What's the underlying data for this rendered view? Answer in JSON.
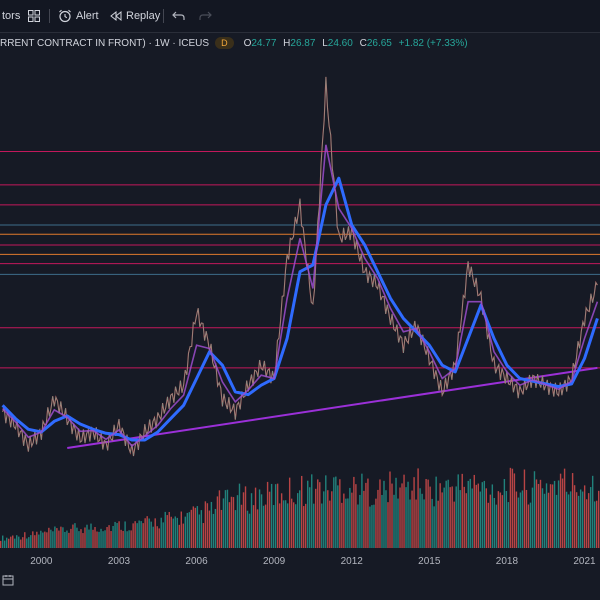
{
  "toolbar": {
    "indicators_label": "tors",
    "alert_label": "Alert",
    "replay_label": "Replay",
    "icons": [
      "layout-grid-icon",
      "alarm-clock-icon",
      "replay-icon",
      "undo-icon",
      "redo-icon"
    ]
  },
  "legend": {
    "symbol_title": "RRENT CONTRACT IN FRONT) · 1W · ICEUS",
    "badge": "D",
    "open_label": "O",
    "open": "24.77",
    "high_label": "H",
    "high": "26.87",
    "low_label": "L",
    "low": "24.60",
    "close_label": "C",
    "close": "26.65",
    "change": "+1.82 (+7.33%)"
  },
  "colors": {
    "background": "#161a25",
    "price_line": "#e05e5e",
    "moving_avg": "#2f6bff",
    "trend_line": "#9b30d8",
    "resistance_magenta": "#c2185b",
    "resistance_orange": "#e07a2d",
    "resistance_blue": "#3d6d8a",
    "volume_up": "#26a69a",
    "volume_down": "#ef5350",
    "up_text": "#26a69a"
  },
  "chart_data": {
    "type": "line",
    "x_axis_ticks": [
      "2000",
      "2003",
      "2006",
      "2009",
      "2012",
      "2015",
      "2018",
      "2021"
    ],
    "x": [
      1998.5,
      1999.0,
      1999.5,
      2000.0,
      2000.5,
      2001.0,
      2001.5,
      2002.0,
      2002.5,
      2003.0,
      2003.5,
      2004.0,
      2004.5,
      2005.0,
      2005.5,
      2006.0,
      2006.5,
      2007.0,
      2007.5,
      2008.0,
      2008.5,
      2009.0,
      2009.5,
      2010.0,
      2010.5,
      2011.0,
      2011.5,
      2012.0,
      2012.5,
      2013.0,
      2013.5,
      2014.0,
      2014.5,
      2015.0,
      2015.5,
      2016.0,
      2016.5,
      2017.0,
      2017.5,
      2018.0,
      2018.5,
      2019.0,
      2019.5,
      2020.0,
      2020.5,
      2021.0,
      2021.5
    ],
    "price": [
      9.5,
      8.5,
      7.0,
      8.0,
      10.5,
      9.0,
      7.5,
      8.0,
      7.0,
      8.5,
      6.5,
      8.0,
      9.0,
      10.5,
      11.5,
      17.0,
      14.5,
      10.5,
      9.5,
      11.5,
      13.0,
      12.0,
      21.0,
      25.0,
      17.0,
      34.0,
      22.5,
      23.0,
      20.0,
      19.0,
      16.5,
      14.5,
      16.0,
      13.5,
      11.0,
      13.0,
      20.5,
      18.0,
      13.0,
      12.0,
      11.0,
      12.0,
      11.5,
      11.0,
      12.0,
      16.5,
      19.0
    ],
    "moving_average": [
      10.0,
      9.0,
      8.2,
      8.0,
      8.8,
      9.2,
      8.6,
      8.2,
      7.9,
      7.8,
      7.4,
      7.4,
      8.0,
      9.0,
      10.0,
      12.0,
      14.0,
      13.0,
      11.0,
      10.8,
      11.5,
      12.0,
      15.0,
      20.0,
      20.5,
      25.0,
      27.0,
      23.5,
      22.0,
      20.0,
      18.0,
      16.5,
      15.5,
      14.5,
      13.0,
      12.5,
      15.0,
      17.5,
      15.0,
      13.0,
      12.0,
      11.8,
      11.6,
      11.4,
      11.6,
      13.5,
      16.5
    ],
    "volume": [
      12,
      14,
      16,
      18,
      20,
      22,
      24,
      25,
      26,
      27,
      28,
      30,
      32,
      35,
      37,
      40,
      45,
      55,
      60,
      58,
      62,
      65,
      68,
      70,
      72,
      70,
      75,
      72,
      70,
      68,
      72,
      74,
      75,
      70,
      72,
      74,
      76,
      72,
      70,
      75,
      74,
      72,
      76,
      78,
      74,
      76,
      78
    ],
    "trend_line": {
      "x": [
        2001.0,
        2021.5
      ],
      "y": [
        6.8,
        12.8
      ]
    },
    "horizontal_levels": [
      {
        "y": 29.0,
        "color": "#c2185b"
      },
      {
        "y": 26.5,
        "color": "#c2185b"
      },
      {
        "y": 25.0,
        "color": "#c2185b"
      },
      {
        "y": 22.8,
        "color": "#e07a2d"
      },
      {
        "y": 22.0,
        "color": "#c2185b"
      },
      {
        "y": 21.3,
        "color": "#e07a2d"
      },
      {
        "y": 20.6,
        "color": "#c2185b"
      },
      {
        "y": 19.8,
        "color": "#3d6d8a"
      },
      {
        "y": 15.8,
        "color": "#c2185b"
      },
      {
        "y": 12.8,
        "color": "#c2185b"
      },
      {
        "y": 23.5,
        "color": "#3d6d8a"
      }
    ],
    "ylim": [
      6.5,
      36
    ]
  }
}
